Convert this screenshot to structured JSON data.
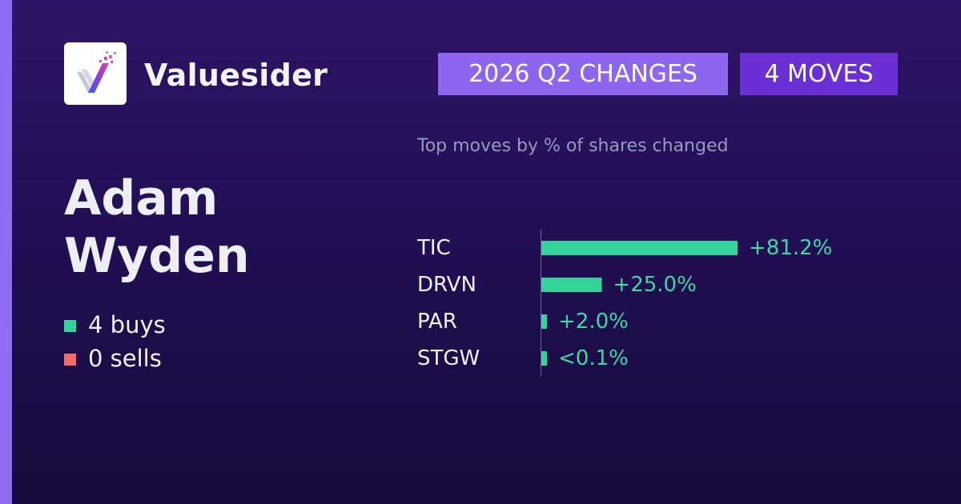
{
  "brand": {
    "name": "Valuesider",
    "logo_icon": "valuesider-logo-icon"
  },
  "badges": {
    "period": "2026 Q2 CHANGES",
    "moves": "4 MOVES"
  },
  "colors": {
    "background": "#2a1260",
    "accent": "#8d65ee",
    "badge_moves": "#6a2fd5",
    "buy": "#33d49a",
    "sell": "#f46b6b",
    "bar": "#33d49a"
  },
  "investor": {
    "name": "Adam Wyden"
  },
  "summary": {
    "buys": "4 buys",
    "sells": "0 sells"
  },
  "chart_data": {
    "type": "bar",
    "orientation": "horizontal",
    "subtitle": "Top moves by % of shares changed",
    "categories": [
      "TIC",
      "DRVN",
      "PAR",
      "STGW"
    ],
    "values": [
      81.2,
      25.0,
      2.0,
      0.1
    ],
    "value_labels": [
      "+81.2%",
      "+25.0%",
      "+2.0%",
      "<0.1%"
    ],
    "xlim": [
      0,
      81.2
    ],
    "grid": false,
    "legend": "none"
  }
}
